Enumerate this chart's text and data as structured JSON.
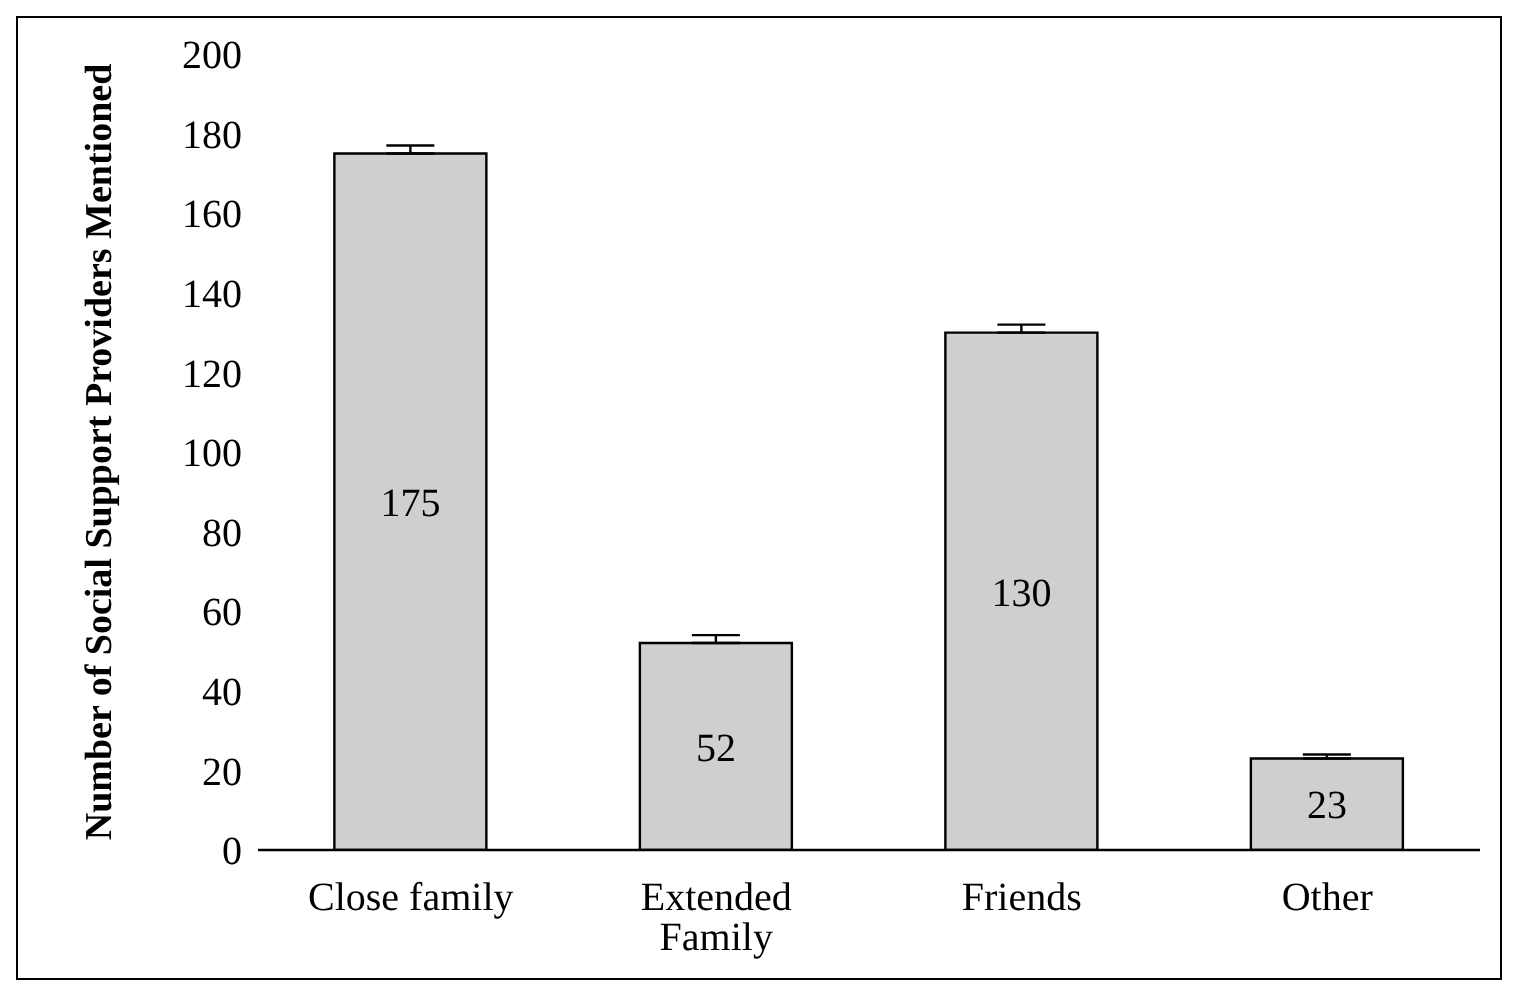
{
  "chart_data": {
    "type": "bar",
    "ylabel": "Number of Social Support Providers Mentioned",
    "categories": [
      "Close family",
      "Extended Family",
      "Friends",
      "Other"
    ],
    "values": [
      175,
      52,
      130,
      23
    ],
    "errors": [
      [
        175,
        177
      ],
      [
        52,
        54
      ],
      [
        130,
        132
      ],
      [
        23,
        24
      ]
    ],
    "color": "#d0cece",
    "data_labels": true,
    "ylim": [
      0,
      200
    ],
    "yticks": [
      0,
      20,
      40,
      60,
      80,
      100,
      120,
      140,
      160,
      180,
      200
    ],
    "grid": false,
    "legend": false
  }
}
